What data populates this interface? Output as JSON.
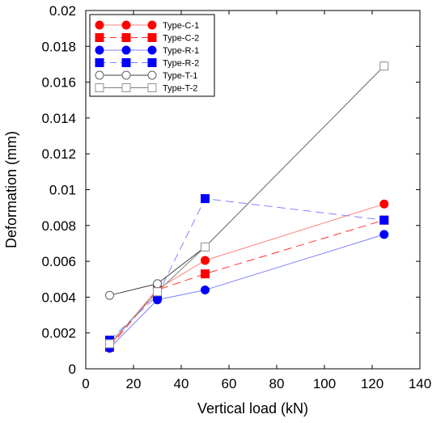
{
  "chart_data": {
    "type": "line",
    "xlabel": "Vertical load (kN)",
    "ylabel": "Deformation (mm)",
    "xlim": [
      0,
      140
    ],
    "ylim": [
      0,
      0.02
    ],
    "xticks": [
      "0",
      "20",
      "40",
      "60",
      "80",
      "100",
      "120",
      "140"
    ],
    "yticks": [
      "0",
      "0.002",
      "0.004",
      "0.006",
      "0.008",
      "0.01",
      "0.012",
      "0.014",
      "0.016",
      "0.018",
      "0.02"
    ],
    "x": [
      10,
      30,
      50,
      125
    ],
    "grid": false,
    "legend_position": "top-left",
    "series": [
      {
        "name": "Type-C-1",
        "values": [
          0.0013,
          0.00445,
          0.00605,
          0.0092
        ],
        "color": "#ff0000",
        "marker": "circle",
        "filled": true,
        "line_color": "#ff8080",
        "dashed": false
      },
      {
        "name": "Type-C-2",
        "values": [
          0.0012,
          0.0044,
          0.0053,
          0.0083
        ],
        "color": "#ff0000",
        "marker": "square",
        "filled": true,
        "line_color": "#ff3030",
        "dashed": true
      },
      {
        "name": "Type-R-1",
        "values": [
          0.00115,
          0.00385,
          0.0044,
          0.0075
        ],
        "color": "#0000ff",
        "marker": "circle",
        "filled": true,
        "line_color": "#8080ff",
        "dashed": false
      },
      {
        "name": "Type-R-2",
        "values": [
          0.0016,
          0.0041,
          0.0095,
          0.0083
        ],
        "color": "#0000ff",
        "marker": "square",
        "filled": true,
        "line_color": "#8080ff",
        "dashed": true
      },
      {
        "name": "Type-T-1",
        "values": [
          0.0041,
          0.00475,
          0.0068,
          0.0169
        ],
        "color": "#606060",
        "marker": "circle",
        "filled": false,
        "line_color": "#404040",
        "dashed": false
      },
      {
        "name": "Type-T-2",
        "values": [
          0.0014,
          0.0043,
          0.0068,
          0.0169
        ],
        "color": "#909090",
        "marker": "square",
        "filled": false,
        "line_color": "#808080",
        "dashed": false
      }
    ]
  }
}
